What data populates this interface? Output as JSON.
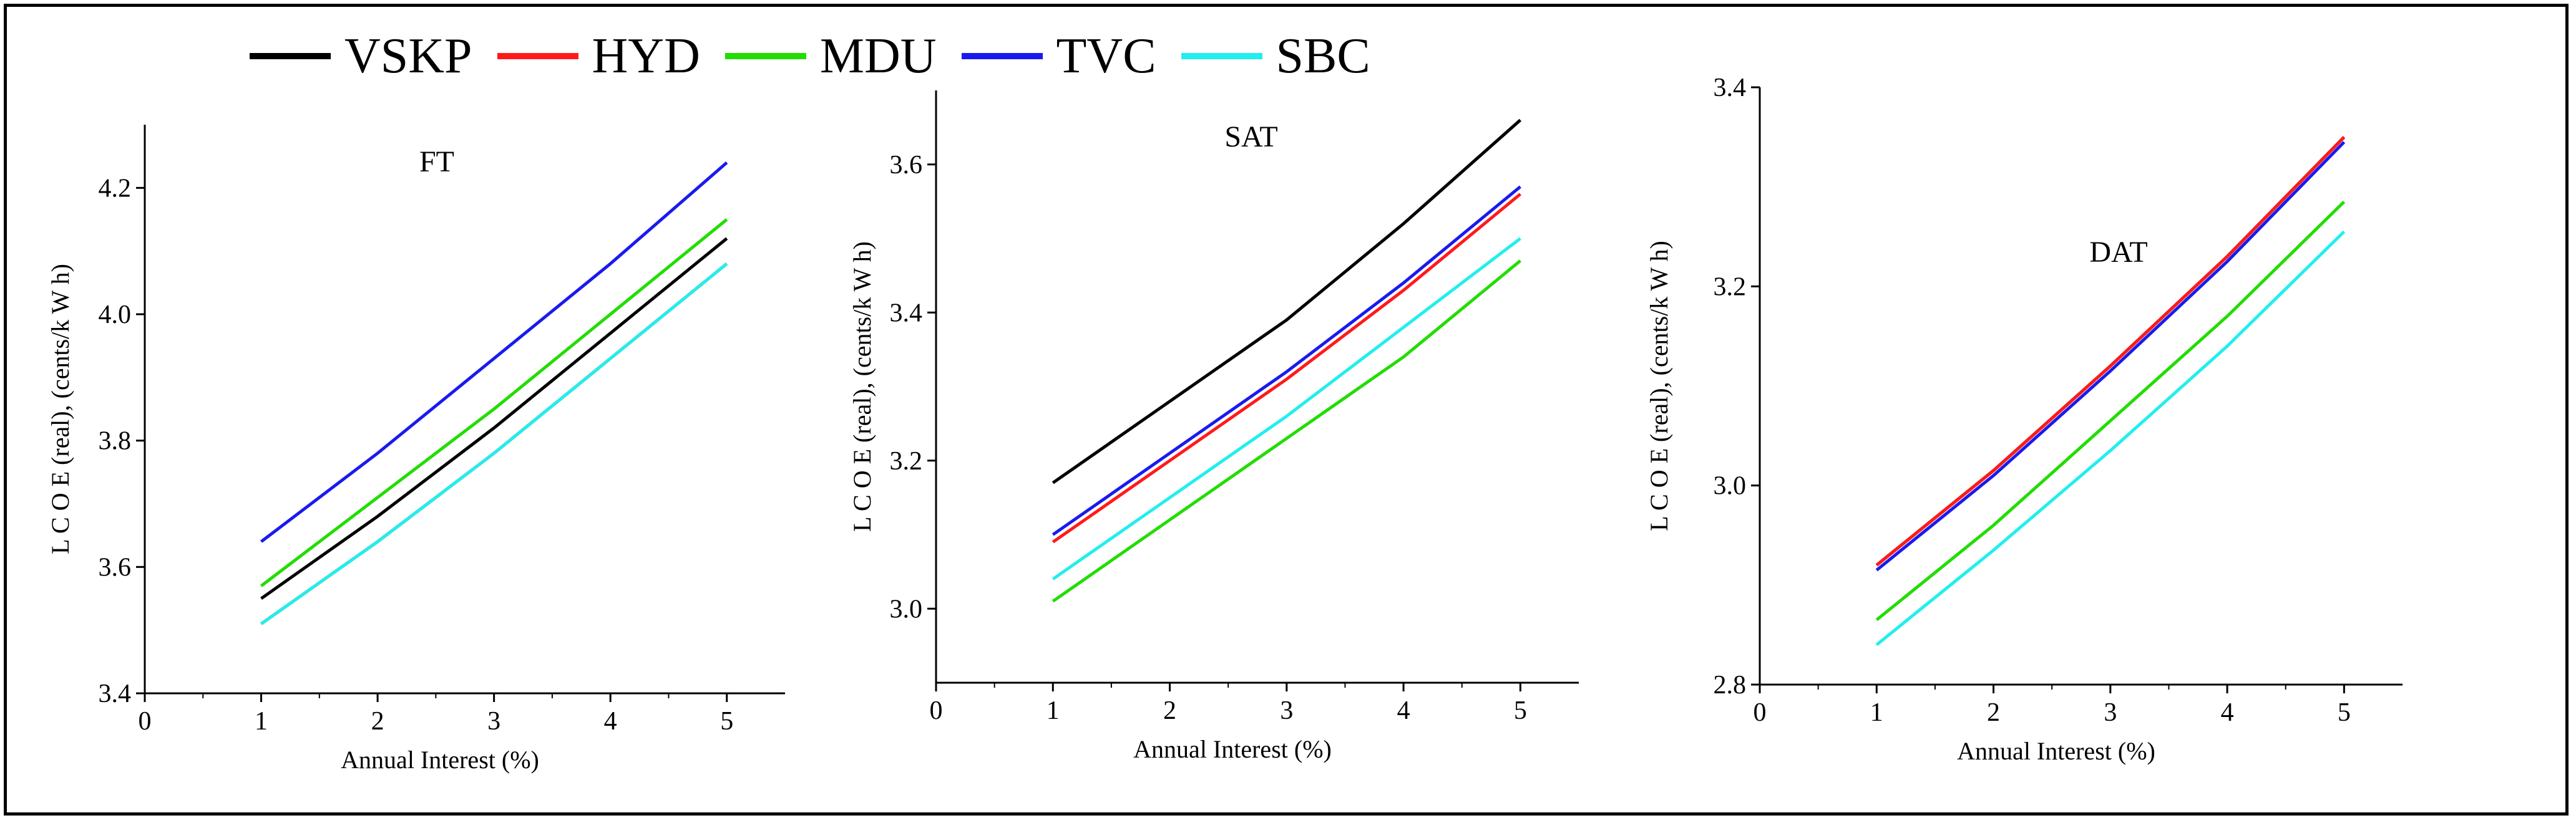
{
  "chart_data": [
    {
      "type": "line",
      "title": "FT",
      "xlabel": "Annual Interest (%)",
      "ylabel": "L C O E (real),  (cents/k W h)",
      "xlim": [
        0,
        5.5
      ],
      "ylim": [
        3.4,
        4.3
      ],
      "xticks": [
        "0",
        "1",
        "2",
        "3",
        "4",
        "5"
      ],
      "yticks": [
        "3.4",
        "3.6",
        "3.8",
        "4.0",
        "4.2"
      ],
      "x": [
        1,
        2,
        3,
        4,
        5
      ],
      "series": [
        {
          "name": "VSKP",
          "values": [
            3.55,
            3.68,
            3.82,
            3.97,
            4.12
          ]
        },
        {
          "name": "HYD",
          "values": [
            3.51,
            3.64,
            3.78,
            3.93,
            4.08
          ]
        },
        {
          "name": "MDU",
          "values": [
            3.57,
            3.71,
            3.85,
            4.0,
            4.15
          ]
        },
        {
          "name": "TVC",
          "values": [
            3.64,
            3.78,
            3.93,
            4.08,
            4.24
          ]
        },
        {
          "name": "SBC",
          "values": [
            3.51,
            3.64,
            3.78,
            3.93,
            4.08
          ]
        }
      ]
    },
    {
      "type": "line",
      "title": "SAT",
      "xlabel": "Annual Interest (%)",
      "ylabel": "L C O E (real),  (cents/k W h)",
      "xlim": [
        0,
        5.5
      ],
      "ylim": [
        2.9,
        3.7
      ],
      "xticks": [
        "0",
        "1",
        "2",
        "3",
        "4",
        "5"
      ],
      "yticks": [
        "3.0",
        "3.2",
        "3.4",
        "3.6"
      ],
      "x": [
        1,
        2,
        3,
        4,
        5
      ],
      "series": [
        {
          "name": "VSKP",
          "values": [
            3.17,
            3.28,
            3.39,
            3.52,
            3.66
          ]
        },
        {
          "name": "HYD",
          "values": [
            3.09,
            3.2,
            3.31,
            3.43,
            3.56
          ]
        },
        {
          "name": "MDU",
          "values": [
            3.01,
            3.12,
            3.23,
            3.34,
            3.47
          ]
        },
        {
          "name": "TVC",
          "values": [
            3.1,
            3.21,
            3.32,
            3.44,
            3.57
          ]
        },
        {
          "name": "SBC",
          "values": [
            3.04,
            3.15,
            3.26,
            3.38,
            3.5
          ]
        }
      ]
    },
    {
      "type": "line",
      "title": "DAT",
      "xlabel": "Annual Interest (%)",
      "ylabel": "L C O E (real),  (cents/k W h)",
      "xlim": [
        0,
        5.5
      ],
      "ylim": [
        2.8,
        3.4
      ],
      "xticks": [
        "0",
        "1",
        "2",
        "3",
        "4",
        "5"
      ],
      "yticks": [
        "2.8",
        "3.0",
        "3.2",
        "3.4"
      ],
      "x": [
        1,
        2,
        3,
        4,
        5
      ],
      "series": [
        {
          "name": "VSKP",
          "values": [
            2.92,
            3.015,
            3.12,
            3.23,
            3.35
          ]
        },
        {
          "name": "HYD",
          "values": [
            2.92,
            3.015,
            3.12,
            3.23,
            3.35
          ]
        },
        {
          "name": "MDU",
          "values": [
            2.865,
            2.96,
            3.065,
            3.17,
            3.285
          ]
        },
        {
          "name": "TVC",
          "values": [
            2.915,
            3.01,
            3.115,
            3.225,
            3.345
          ]
        },
        {
          "name": "SBC",
          "values": [
            2.84,
            2.935,
            3.035,
            3.14,
            3.255
          ]
        }
      ]
    }
  ],
  "legend": [
    {
      "name": "VSKP",
      "color": "#000000"
    },
    {
      "name": "HYD",
      "color": "#ff1a1a"
    },
    {
      "name": "MDU",
      "color": "#22dd00"
    },
    {
      "name": "TVC",
      "color": "#1a1aee"
    },
    {
      "name": "SBC",
      "color": "#22eeee"
    }
  ]
}
